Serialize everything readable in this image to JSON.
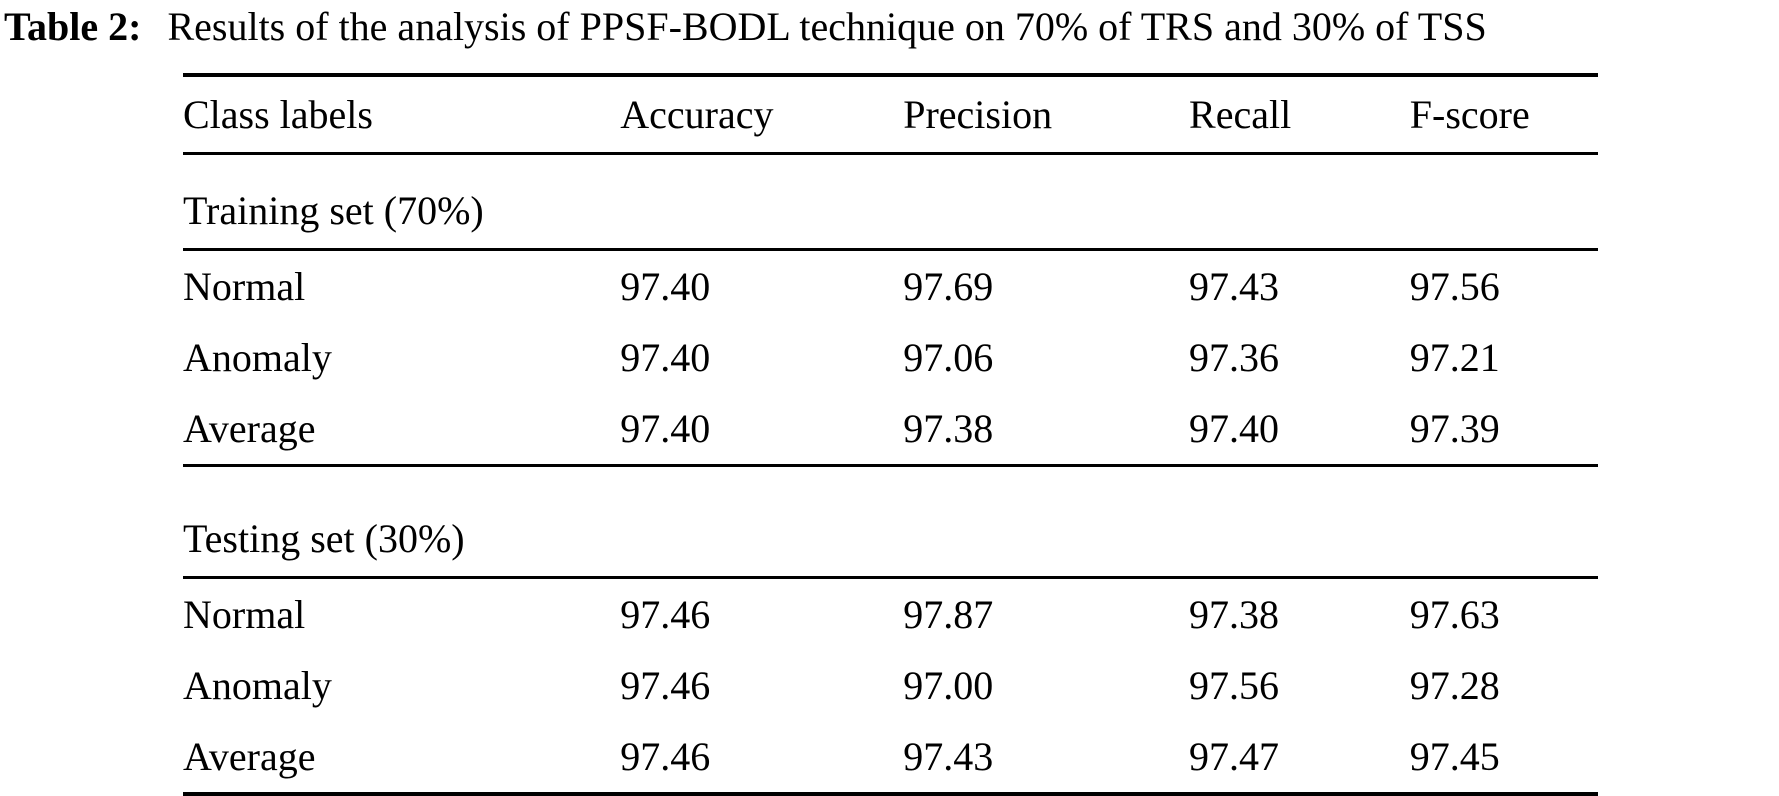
{
  "caption": {
    "label": "Table 2:",
    "text": "Results of the analysis of PPSF-BODL technique on 70% of TRS and 30% of TSS"
  },
  "table": {
    "columns": [
      "Class labels",
      "Accuracy",
      "Precision",
      "Recall",
      "F-score"
    ],
    "sections": [
      {
        "title": "Training set (70%)",
        "rows": [
          {
            "label": "Normal",
            "values": [
              "97.40",
              "97.69",
              "97.43",
              "97.56"
            ]
          },
          {
            "label": "Anomaly",
            "values": [
              "97.40",
              "97.06",
              "97.36",
              "97.21"
            ]
          },
          {
            "label": "Average",
            "values": [
              "97.40",
              "97.38",
              "97.40",
              "97.39"
            ]
          }
        ]
      },
      {
        "title": "Testing set (30%)",
        "rows": [
          {
            "label": "Normal",
            "values": [
              "97.46",
              "97.87",
              "97.38",
              "97.63"
            ]
          },
          {
            "label": "Anomaly",
            "values": [
              "97.46",
              "97.00",
              "97.56",
              "97.28"
            ]
          },
          {
            "label": "Average",
            "values": [
              "97.46",
              "97.43",
              "97.47",
              "97.45"
            ]
          }
        ]
      }
    ]
  },
  "chart_data": {
    "type": "table",
    "title": "Table 2: Results of the analysis of PPSF-BODL technique on 70% of TRS and 30% of TSS",
    "columns": [
      "Class labels",
      "Accuracy",
      "Precision",
      "Recall",
      "F-score"
    ],
    "rows": [
      [
        "Training set (70%)",
        "",
        "",
        "",
        ""
      ],
      [
        "Normal",
        97.4,
        97.69,
        97.43,
        97.56
      ],
      [
        "Anomaly",
        97.4,
        97.06,
        97.36,
        97.21
      ],
      [
        "Average",
        97.4,
        97.38,
        97.4,
        97.39
      ],
      [
        "Testing set (30%)",
        "",
        "",
        "",
        ""
      ],
      [
        "Normal",
        97.46,
        97.87,
        97.38,
        97.63
      ],
      [
        "Anomaly",
        97.46,
        97.0,
        97.56,
        97.28
      ],
      [
        "Average",
        97.46,
        97.43,
        97.47,
        97.45
      ]
    ]
  },
  "colors": {
    "background": "#ffffff",
    "text": "#000000",
    "rule": "#000000"
  }
}
